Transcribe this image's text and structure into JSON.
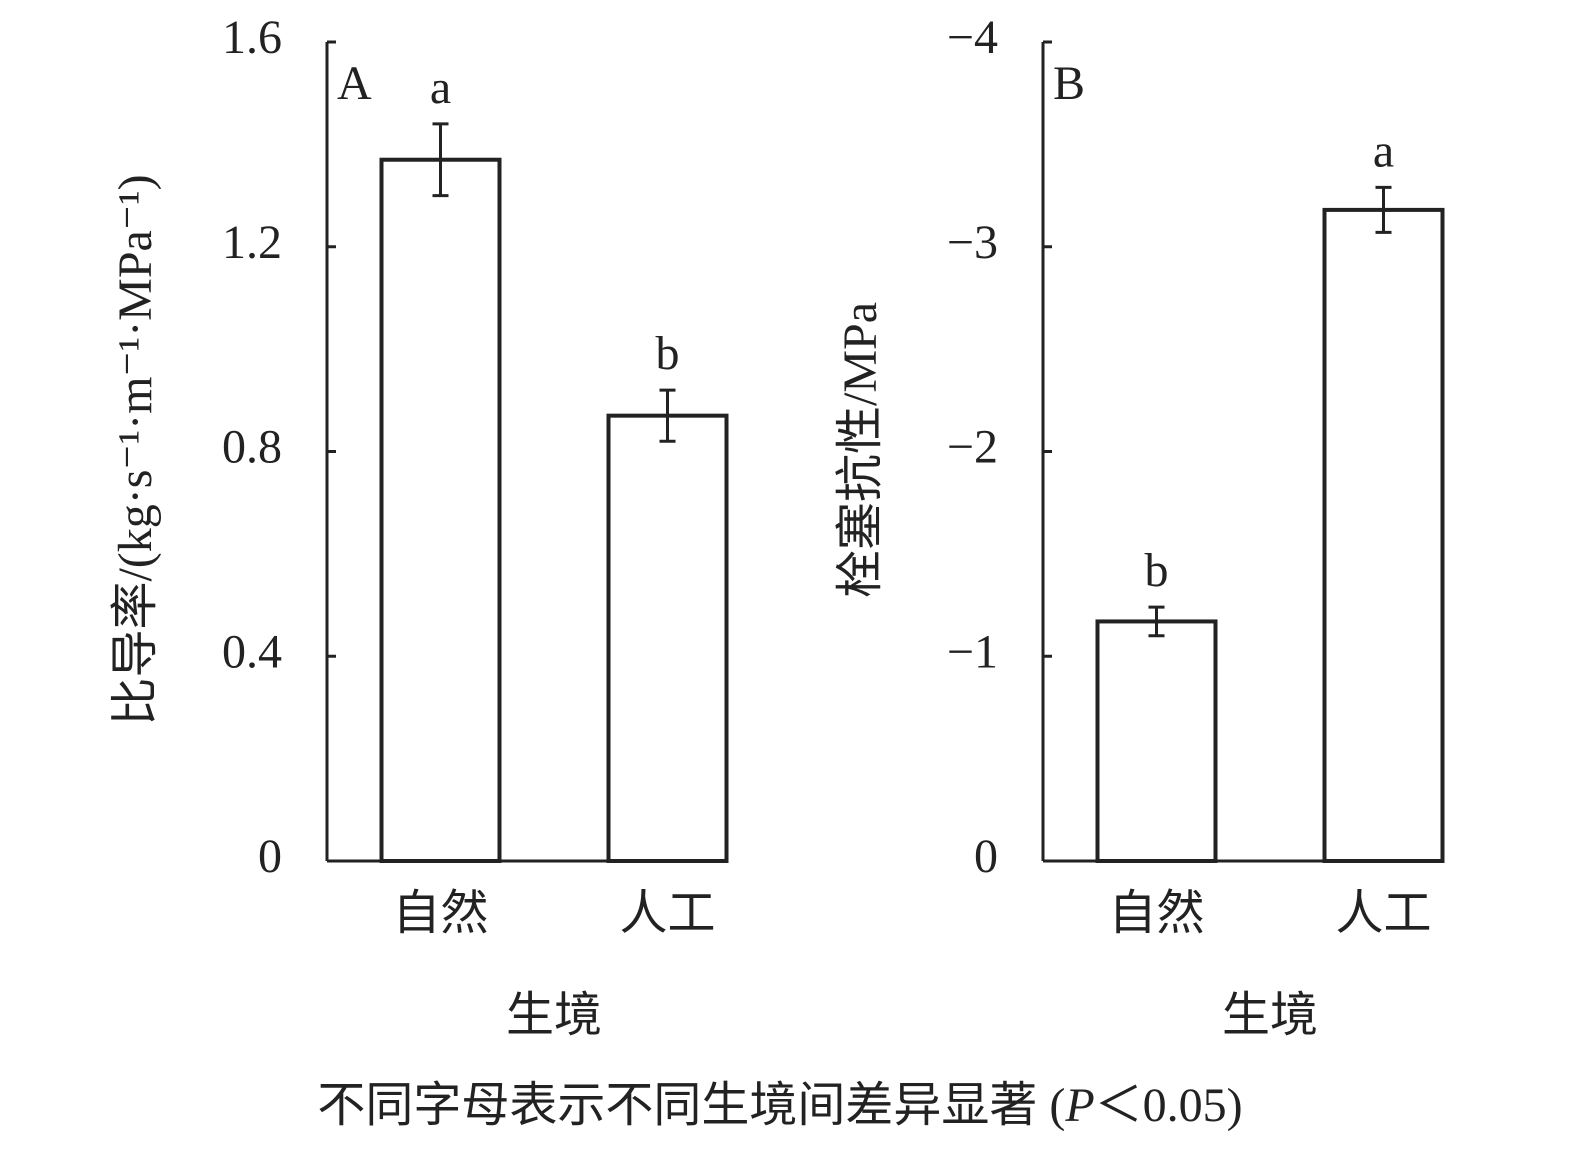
{
  "chart_data": [
    {
      "type": "bar",
      "panel_label": "A",
      "ylabel": "比导率/(kg·s⁻¹·m⁻¹·MPa⁻¹)",
      "xlabel": "生境",
      "categories": [
        "自然",
        "人工"
      ],
      "values": [
        1.37,
        0.87
      ],
      "errors": [
        0.07,
        0.05
      ],
      "letters": [
        "a",
        "b"
      ],
      "color": "#ffffff",
      "ylim": [
        0,
        1.6
      ],
      "yticks": [
        0,
        0.4,
        0.8,
        1.2,
        1.6
      ]
    },
    {
      "type": "bar",
      "panel_label": "B",
      "ylabel": "栓塞抗性/MPa",
      "xlabel": "生境",
      "categories": [
        "自然",
        "人工"
      ],
      "values": [
        -1.17,
        -3.18
      ],
      "errors": [
        0.07,
        0.11
      ],
      "letters": [
        "b",
        "a"
      ],
      "color": "#ffffff",
      "ylim": [
        0,
        -4
      ],
      "yticks": [
        {
          "value": 0,
          "label": "0"
        },
        {
          "value": -1,
          "label": "−1"
        },
        {
          "value": -2,
          "label": "−2"
        },
        {
          "value": -3,
          "label": "−3"
        },
        {
          "value": -4,
          "label": "−4"
        }
      ]
    }
  ],
  "caption": [
    "不同字母表示不同生境间差异显著 (",
    "P",
    "＜0.05)"
  ]
}
